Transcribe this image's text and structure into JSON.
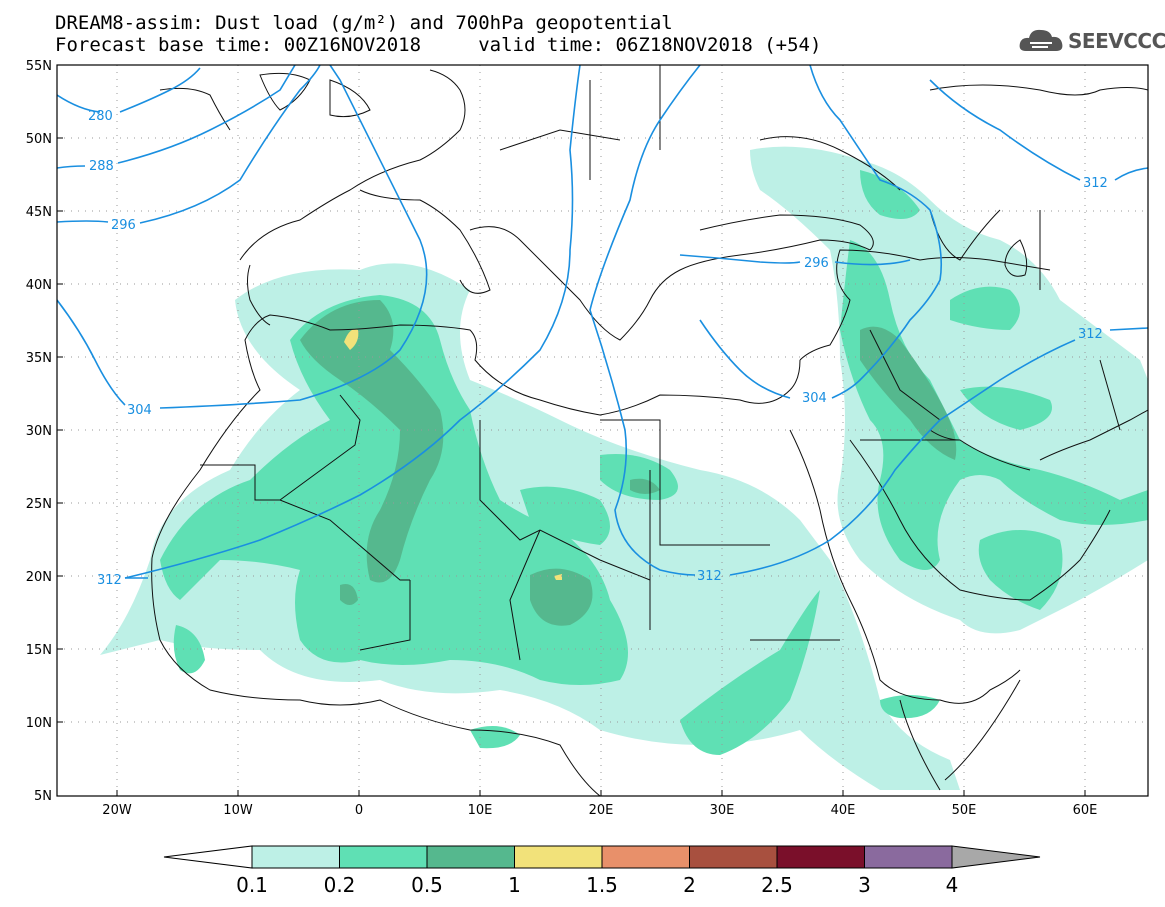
{
  "title": {
    "line1": "DREAM8-assim: Dust load (g/m²) and 700hPa geopotential",
    "line2": "Forecast base time: 00Z16NOV2018     valid time: 06Z18NOV2018 (+54)"
  },
  "logo": {
    "text": "SEEVCCC",
    "icon": "cloud-logo-icon"
  },
  "axes": {
    "lon_labels": [
      "20W",
      "10W",
      "0",
      "10E",
      "20E",
      "30E",
      "40E",
      "50E",
      "60E"
    ],
    "lat_labels": [
      "55N",
      "50N",
      "45N",
      "40N",
      "35N",
      "30N",
      "25N",
      "20N",
      "15N",
      "10N",
      "5N"
    ],
    "lon_range": [
      -25,
      65
    ],
    "lat_range": [
      5,
      55
    ],
    "grid": "dotted"
  },
  "contour_labels": [
    "280",
    "288",
    "296",
    "304",
    "312",
    "296",
    "304",
    "312",
    "312",
    "312"
  ],
  "colorbar": {
    "labels": [
      "0.1",
      "0.2",
      "0.5",
      "1",
      "1.5",
      "2",
      "2.5",
      "3",
      "4"
    ],
    "colors": [
      "#bdf0e6",
      "#5fe0b4",
      "#55b88e",
      "#f2e27a",
      "#e8906a",
      "#a8503f",
      "#7a0f2a",
      "#8a6a9e",
      "#a8a8a8"
    ]
  }
}
